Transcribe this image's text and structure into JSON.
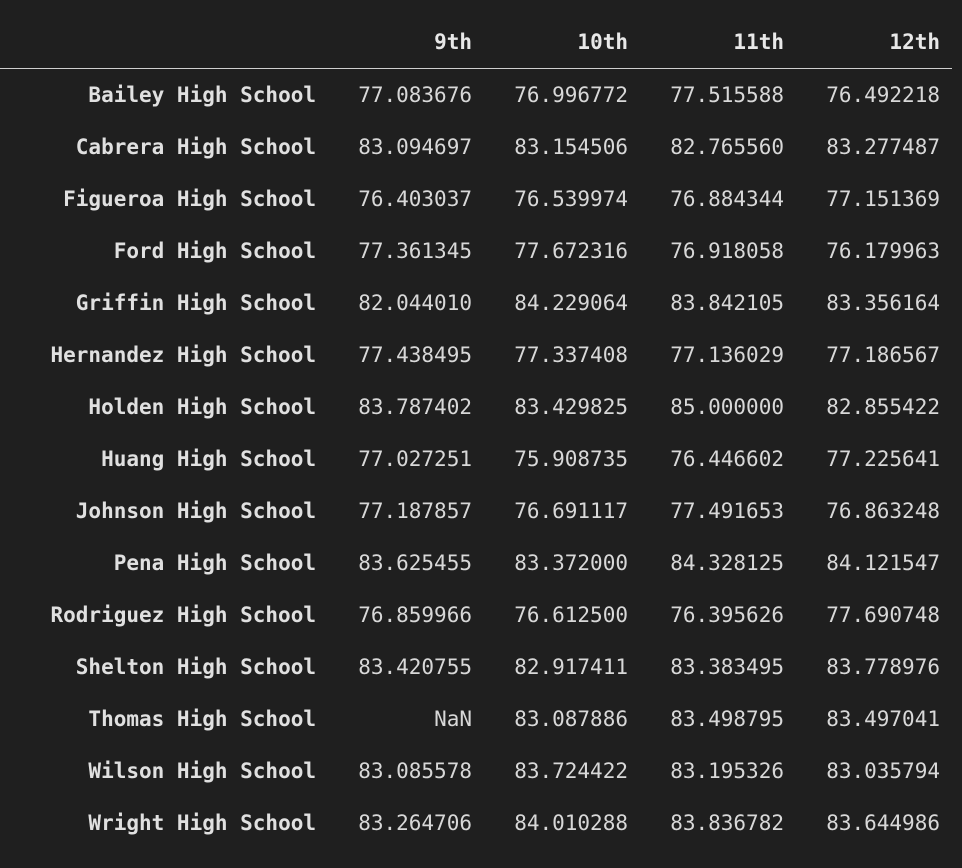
{
  "table": {
    "index_header": "",
    "columns": [
      "9th",
      "10th",
      "11th",
      "12th"
    ],
    "rows": [
      {
        "school": "Bailey High School",
        "values": [
          "77.083676",
          "76.996772",
          "77.515588",
          "76.492218"
        ]
      },
      {
        "school": "Cabrera High School",
        "values": [
          "83.094697",
          "83.154506",
          "82.765560",
          "83.277487"
        ]
      },
      {
        "school": "Figueroa High School",
        "values": [
          "76.403037",
          "76.539974",
          "76.884344",
          "77.151369"
        ]
      },
      {
        "school": "Ford High School",
        "values": [
          "77.361345",
          "77.672316",
          "76.918058",
          "76.179963"
        ]
      },
      {
        "school": "Griffin High School",
        "values": [
          "82.044010",
          "84.229064",
          "83.842105",
          "83.356164"
        ]
      },
      {
        "school": "Hernandez High School",
        "values": [
          "77.438495",
          "77.337408",
          "77.136029",
          "77.186567"
        ]
      },
      {
        "school": "Holden High School",
        "values": [
          "83.787402",
          "83.429825",
          "85.000000",
          "82.855422"
        ]
      },
      {
        "school": "Huang High School",
        "values": [
          "77.027251",
          "75.908735",
          "76.446602",
          "77.225641"
        ]
      },
      {
        "school": "Johnson High School",
        "values": [
          "77.187857",
          "76.691117",
          "77.491653",
          "76.863248"
        ]
      },
      {
        "school": "Pena High School",
        "values": [
          "83.625455",
          "83.372000",
          "84.328125",
          "84.121547"
        ]
      },
      {
        "school": "Rodriguez High School",
        "values": [
          "76.859966",
          "76.612500",
          "76.395626",
          "77.690748"
        ]
      },
      {
        "school": "Shelton High School",
        "values": [
          "83.420755",
          "82.917411",
          "83.383495",
          "83.778976"
        ]
      },
      {
        "school": "Thomas High School",
        "values": [
          "NaN",
          "83.087886",
          "83.498795",
          "83.497041"
        ]
      },
      {
        "school": "Wilson High School",
        "values": [
          "83.085578",
          "83.724422",
          "83.195326",
          "83.035794"
        ]
      },
      {
        "school": "Wright High School",
        "values": [
          "83.264706",
          "84.010288",
          "83.836782",
          "83.644986"
        ]
      }
    ]
  },
  "colors": {
    "background": "#1f1f1f",
    "text": "#d4d4d4",
    "header_rule": "#cfcfcf"
  }
}
